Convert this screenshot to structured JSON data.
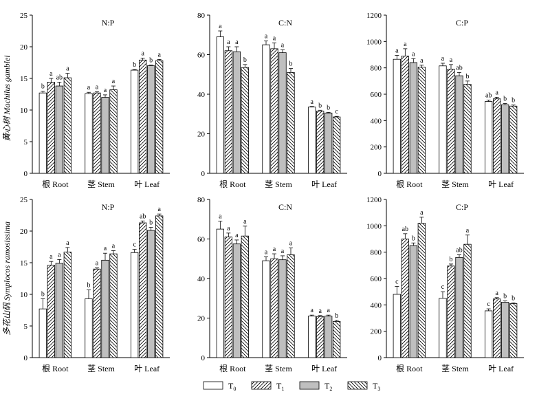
{
  "legend": [
    {
      "label": "T",
      "sub": "0"
    },
    {
      "label": "T",
      "sub": "1"
    },
    {
      "label": "T",
      "sub": "2"
    },
    {
      "label": "T",
      "sub": "3"
    }
  ],
  "row_labels": [
    "黄心树  Machilus gamblei",
    "多花山矾  Symplocos ramosissima"
  ],
  "chart_data": [
    {
      "type": "bar",
      "title": "N:P",
      "ylim": [
        0,
        25
      ],
      "yticks": [
        0,
        5,
        10,
        15,
        20,
        25
      ],
      "categories": [
        "根  Root",
        "茎  Stem",
        "叶  Leaf"
      ],
      "series": [
        {
          "name": "T0",
          "values": [
            12.7,
            12.6,
            16.3
          ],
          "errors": [
            0.3,
            0.2,
            0.1
          ],
          "sig": [
            "b",
            "a",
            "b"
          ]
        },
        {
          "name": "T1",
          "values": [
            14.4,
            12.7,
            17.9
          ],
          "errors": [
            0.6,
            0.2,
            0.3
          ],
          "sig": [
            "a",
            "a",
            "a"
          ]
        },
        {
          "name": "T2",
          "values": [
            13.8,
            12.0,
            17.0
          ],
          "errors": [
            0.6,
            0.4,
            0.1
          ],
          "sig": [
            "ab",
            "a",
            "b"
          ]
        },
        {
          "name": "T3",
          "values": [
            15.1,
            13.2,
            17.8
          ],
          "errors": [
            0.7,
            0.6,
            0.2
          ],
          "sig": [
            "a",
            "a",
            "a"
          ]
        }
      ]
    },
    {
      "type": "bar",
      "title": "C:N",
      "ylim": [
        0,
        80
      ],
      "yticks": [
        0,
        20,
        40,
        60,
        80
      ],
      "categories": [
        "根  Root",
        "茎  Stem",
        "叶  Leaf"
      ],
      "series": [
        {
          "name": "T0",
          "values": [
            69,
            65,
            33.5
          ],
          "errors": [
            3,
            2,
            0.3
          ],
          "sig": [
            "a",
            "a",
            "a"
          ]
        },
        {
          "name": "T1",
          "values": [
            62,
            63,
            31.5
          ],
          "errors": [
            2,
            3,
            0.4
          ],
          "sig": [
            "a",
            "a",
            "b"
          ]
        },
        {
          "name": "T2",
          "values": [
            61.5,
            61,
            30.5
          ],
          "errors": [
            2.5,
            1.5,
            0.3
          ],
          "sig": [
            "a",
            "a",
            "b"
          ]
        },
        {
          "name": "T3",
          "values": [
            53.5,
            51,
            28.5
          ],
          "errors": [
            1.5,
            2,
            0.3
          ],
          "sig": [
            "b",
            "b",
            "c"
          ]
        }
      ]
    },
    {
      "type": "bar",
      "title": "C:P",
      "ylim": [
        0,
        1200
      ],
      "yticks": [
        0,
        200,
        400,
        600,
        800,
        1000,
        1200
      ],
      "categories": [
        "根  Root",
        "茎  Stem",
        "叶  Leaf"
      ],
      "series": [
        {
          "name": "T0",
          "values": [
            865,
            815,
            545
          ],
          "errors": [
            30,
            20,
            10
          ],
          "sig": [
            "a",
            "a",
            "ab"
          ]
        },
        {
          "name": "T1",
          "values": [
            890,
            790,
            565
          ],
          "errors": [
            55,
            35,
            12
          ],
          "sig": [
            "a",
            "a",
            "a"
          ]
        },
        {
          "name": "T2",
          "values": [
            840,
            740,
            520
          ],
          "errors": [
            30,
            25,
            10
          ],
          "sig": [
            "a",
            "ab",
            "b"
          ]
        },
        {
          "name": "T3",
          "values": [
            805,
            675,
            510
          ],
          "errors": [
            15,
            25,
            8
          ],
          "sig": [
            "a",
            "b",
            "b"
          ]
        }
      ]
    },
    {
      "type": "bar",
      "title": "N:P",
      "ylim": [
        0,
        25
      ],
      "yticks": [
        0,
        5,
        10,
        15,
        20,
        25
      ],
      "categories": [
        "根  Root",
        "茎  Stem",
        "叶  Leaf"
      ],
      "series": [
        {
          "name": "T0",
          "values": [
            7.7,
            9.3,
            16.6
          ],
          "errors": [
            1.6,
            1.4,
            0.5
          ],
          "sig": [
            "b",
            "b",
            "c"
          ]
        },
        {
          "name": "T1",
          "values": [
            14.6,
            14.0,
            21.3
          ],
          "errors": [
            0.6,
            0.2,
            0.3
          ],
          "sig": [
            "a",
            "a",
            "ab"
          ]
        },
        {
          "name": "T2",
          "values": [
            14.9,
            15.4,
            20.1
          ],
          "errors": [
            0.6,
            1.1,
            0.5
          ],
          "sig": [
            "a",
            "a",
            "b"
          ]
        },
        {
          "name": "T3",
          "values": [
            16.7,
            16.4,
            22.4
          ],
          "errors": [
            0.7,
            0.5,
            0.3
          ],
          "sig": [
            "a",
            "a",
            "a"
          ]
        }
      ]
    },
    {
      "type": "bar",
      "title": "C:N",
      "ylim": [
        0,
        80
      ],
      "yticks": [
        0,
        20,
        40,
        60,
        80
      ],
      "categories": [
        "根  Root",
        "茎  Stem",
        "叶  Leaf"
      ],
      "series": [
        {
          "name": "T0",
          "values": [
            65,
            49,
            21
          ],
          "errors": [
            4,
            2,
            0.5
          ],
          "sig": [
            "a",
            "a",
            "a"
          ]
        },
        {
          "name": "T1",
          "values": [
            61,
            50,
            20.8
          ],
          "errors": [
            2,
            2.5,
            0.5
          ],
          "sig": [
            "a",
            "a",
            "a"
          ]
        },
        {
          "name": "T2",
          "values": [
            57.5,
            49.5,
            21
          ],
          "errors": [
            2,
            2,
            0.5
          ],
          "sig": [
            "a",
            "a",
            "a"
          ]
        },
        {
          "name": "T3",
          "values": [
            61.5,
            52,
            18.3
          ],
          "errors": [
            5,
            3.5,
            0.5
          ],
          "sig": [
            "a",
            "a",
            "b"
          ]
        }
      ]
    },
    {
      "type": "bar",
      "title": "C:P",
      "ylim": [
        0,
        1200
      ],
      "yticks": [
        0,
        200,
        400,
        600,
        800,
        1000,
        1200
      ],
      "categories": [
        "根  Root",
        "茎  Stem",
        "叶  Leaf"
      ],
      "series": [
        {
          "name": "T0",
          "values": [
            480,
            450,
            355
          ],
          "errors": [
            60,
            50,
            15
          ],
          "sig": [
            "c",
            "c",
            "c"
          ]
        },
        {
          "name": "T1",
          "values": [
            900,
            695,
            445
          ],
          "errors": [
            40,
            15,
            10
          ],
          "sig": [
            "ab",
            "b",
            "a"
          ]
        },
        {
          "name": "T2",
          "values": [
            850,
            760,
            420
          ],
          "errors": [
            20,
            20,
            10
          ],
          "sig": [
            "b",
            "ab",
            "b"
          ]
        },
        {
          "name": "T3",
          "values": [
            1020,
            860,
            410
          ],
          "errors": [
            45,
            70,
            5
          ],
          "sig": [
            "a",
            "a",
            "b"
          ]
        }
      ]
    }
  ]
}
